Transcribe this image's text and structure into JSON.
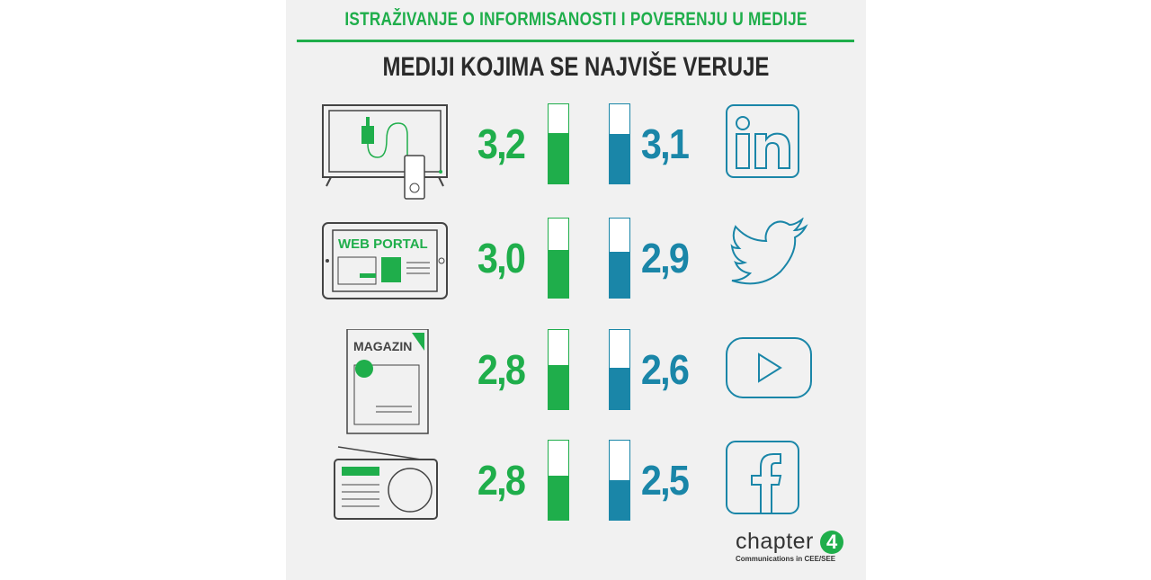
{
  "header": {
    "title": "ISTRAŽIVANJE O INFORMISANOSTI I POVERENJU U MEDIJE",
    "subtitle": "MEDIJI KOJIMA SE NAJVIŠE VERUJE"
  },
  "colors": {
    "traditional": "#1fae4b",
    "social": "#1a86a8"
  },
  "chart_data": {
    "type": "bar",
    "title": "MEDIJI KOJIMA SE NAJVIŠE VERUJE",
    "ylim": [
      0,
      5
    ],
    "rows": [
      {
        "traditional": {
          "icon": "tv-icon",
          "value": 3.2,
          "label": "3,2"
        },
        "social": {
          "icon": "linkedin-icon",
          "value": 3.1,
          "label": "3,1"
        }
      },
      {
        "traditional": {
          "icon": "web-portal-icon",
          "icon_text": "WEB PORTAL",
          "value": 3.0,
          "label": "3,0"
        },
        "social": {
          "icon": "twitter-icon",
          "value": 2.9,
          "label": "2,9"
        }
      },
      {
        "traditional": {
          "icon": "magazine-icon",
          "icon_text": "MAGAZIN",
          "value": 2.8,
          "label": "2,8"
        },
        "social": {
          "icon": "youtube-icon",
          "value": 2.6,
          "label": "2,6"
        }
      },
      {
        "traditional": {
          "icon": "radio-icon",
          "value": 2.8,
          "label": "2,8"
        },
        "social": {
          "icon": "facebook-icon",
          "value": 2.5,
          "label": "2,5"
        }
      }
    ]
  },
  "brand": {
    "name": "chapter",
    "mark": "4",
    "tagline": "Communications in CEE/SEE"
  }
}
